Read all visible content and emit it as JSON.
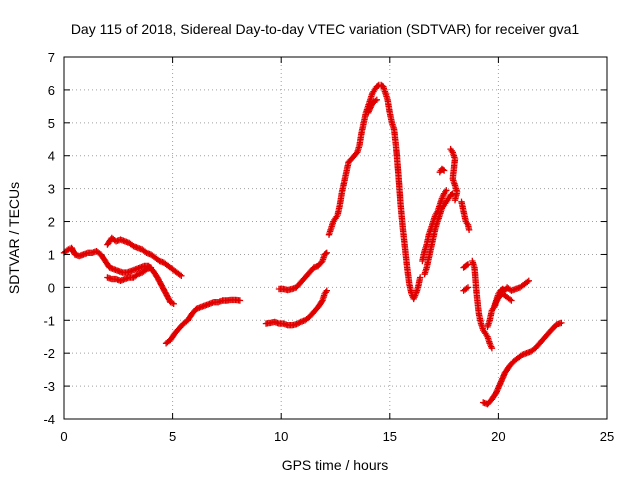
{
  "chart_data": {
    "type": "scatter",
    "title": "Day 115 of 2018, Sidereal Day-to-day VTEC variation (SDTVAR) for receiver gva1",
    "xlabel": "GPS time / hours",
    "ylabel": "SDTVAR / TECUs",
    "xlim": [
      0,
      25
    ],
    "ylim": [
      -4,
      7
    ],
    "xticks": [
      "0",
      "5",
      "10",
      "15",
      "20",
      "25"
    ],
    "yticks": [
      "-4",
      "-3",
      "-2",
      "-1",
      "0",
      "1",
      "2",
      "3",
      "4",
      "5",
      "6",
      "7"
    ],
    "grid": true,
    "marker": "+",
    "color": "#e00000",
    "series": [
      {
        "name": "seg1",
        "points": [
          [
            0.0,
            1.05
          ],
          [
            0.2,
            1.15
          ],
          [
            0.35,
            1.2
          ],
          [
            0.5,
            1.0
          ],
          [
            0.7,
            0.95
          ],
          [
            0.9,
            1.0
          ],
          [
            1.1,
            1.05
          ],
          [
            1.3,
            1.05
          ],
          [
            1.5,
            1.1
          ],
          [
            1.7,
            1.0
          ],
          [
            1.9,
            0.8
          ],
          [
            2.1,
            0.6
          ],
          [
            2.3,
            0.55
          ],
          [
            2.5,
            0.5
          ],
          [
            2.7,
            0.45
          ],
          [
            2.9,
            0.45
          ],
          [
            3.1,
            0.5
          ],
          [
            3.3,
            0.55
          ],
          [
            3.5,
            0.6
          ],
          [
            3.7,
            0.65
          ],
          [
            3.9,
            0.65
          ],
          [
            4.1,
            0.5
          ],
          [
            4.3,
            0.3
          ],
          [
            4.5,
            0.05
          ],
          [
            4.7,
            -0.2
          ],
          [
            4.9,
            -0.45
          ],
          [
            5.05,
            -0.5
          ]
        ]
      },
      {
        "name": "seg2",
        "points": [
          [
            2.0,
            1.3
          ],
          [
            2.2,
            1.5
          ],
          [
            2.4,
            1.4
          ],
          [
            2.6,
            1.45
          ],
          [
            2.8,
            1.4
          ],
          [
            3.0,
            1.35
          ],
          [
            3.2,
            1.25
          ],
          [
            3.4,
            1.2
          ],
          [
            3.6,
            1.15
          ],
          [
            3.8,
            1.05
          ],
          [
            4.0,
            1.0
          ],
          [
            4.2,
            0.9
          ],
          [
            4.4,
            0.8
          ],
          [
            4.6,
            0.75
          ],
          [
            4.8,
            0.65
          ],
          [
            5.0,
            0.55
          ],
          [
            5.2,
            0.45
          ],
          [
            5.4,
            0.35
          ]
        ]
      },
      {
        "name": "seg3",
        "points": [
          [
            2.0,
            0.3
          ],
          [
            2.2,
            0.25
          ],
          [
            2.4,
            0.25
          ],
          [
            2.6,
            0.2
          ],
          [
            2.8,
            0.25
          ],
          [
            3.0,
            0.3
          ],
          [
            3.2,
            0.3
          ],
          [
            3.4,
            0.4
          ],
          [
            3.6,
            0.45
          ],
          [
            3.8,
            0.55
          ],
          [
            4.0,
            0.6
          ]
        ]
      },
      {
        "name": "seg4",
        "points": [
          [
            4.7,
            -1.7
          ],
          [
            4.9,
            -1.6
          ],
          [
            5.1,
            -1.4
          ],
          [
            5.3,
            -1.25
          ],
          [
            5.5,
            -1.1
          ],
          [
            5.7,
            -1.0
          ],
          [
            5.9,
            -0.8
          ],
          [
            6.1,
            -0.65
          ],
          [
            6.3,
            -0.6
          ],
          [
            6.5,
            -0.55
          ],
          [
            6.7,
            -0.5
          ],
          [
            6.9,
            -0.45
          ],
          [
            7.1,
            -0.45
          ],
          [
            7.3,
            -0.4
          ],
          [
            7.5,
            -0.4
          ],
          [
            7.7,
            -0.38
          ],
          [
            7.9,
            -0.38
          ],
          [
            8.1,
            -0.4
          ]
        ]
      },
      {
        "name": "seg5",
        "points": [
          [
            9.3,
            -1.1
          ],
          [
            9.5,
            -1.08
          ],
          [
            9.7,
            -1.05
          ],
          [
            9.9,
            -1.1
          ],
          [
            10.1,
            -1.1
          ],
          [
            10.3,
            -1.15
          ],
          [
            10.5,
            -1.15
          ],
          [
            10.7,
            -1.12
          ],
          [
            10.9,
            -1.05
          ],
          [
            11.1,
            -1.0
          ],
          [
            11.3,
            -0.9
          ],
          [
            11.5,
            -0.75
          ],
          [
            11.7,
            -0.6
          ],
          [
            11.9,
            -0.4
          ],
          [
            12.0,
            -0.2
          ],
          [
            12.1,
            -0.1
          ]
        ]
      },
      {
        "name": "seg6",
        "points": [
          [
            9.9,
            -0.05
          ],
          [
            10.1,
            -0.05
          ],
          [
            10.3,
            -0.08
          ],
          [
            10.5,
            -0.05
          ],
          [
            10.7,
            0.0
          ],
          [
            10.9,
            0.15
          ],
          [
            11.1,
            0.3
          ],
          [
            11.3,
            0.45
          ],
          [
            11.5,
            0.6
          ],
          [
            11.7,
            0.65
          ],
          [
            11.9,
            0.8
          ],
          [
            12.0,
            1.0
          ],
          [
            12.1,
            1.05
          ]
        ]
      },
      {
        "name": "seg7",
        "points": [
          [
            12.2,
            1.6
          ],
          [
            12.3,
            1.8
          ],
          [
            12.4,
            2.0
          ],
          [
            12.5,
            2.1
          ],
          [
            12.6,
            2.2
          ],
          [
            12.7,
            2.5
          ],
          [
            12.8,
            2.9
          ],
          [
            12.9,
            3.2
          ],
          [
            13.0,
            3.5
          ],
          [
            13.1,
            3.8
          ],
          [
            13.3,
            3.95
          ],
          [
            13.5,
            4.1
          ],
          [
            13.6,
            4.3
          ],
          [
            13.7,
            4.7
          ],
          [
            13.8,
            5.0
          ],
          [
            13.9,
            5.3
          ],
          [
            14.0,
            5.5
          ],
          [
            14.1,
            5.7
          ],
          [
            14.2,
            5.9
          ],
          [
            14.3,
            6.0
          ],
          [
            14.4,
            6.1
          ],
          [
            14.5,
            6.15
          ],
          [
            14.6,
            6.15
          ],
          [
            14.7,
            6.1
          ],
          [
            14.8,
            5.9
          ],
          [
            14.9,
            5.7
          ],
          [
            15.0,
            5.3
          ],
          [
            15.1,
            5.0
          ],
          [
            15.2,
            4.8
          ],
          [
            15.3,
            4.2
          ],
          [
            15.4,
            3.4
          ],
          [
            15.5,
            2.5
          ],
          [
            15.6,
            1.8
          ],
          [
            15.7,
            1.2
          ],
          [
            15.8,
            0.6
          ],
          [
            15.9,
            0.1
          ],
          [
            16.0,
            -0.2
          ],
          [
            16.1,
            -0.35
          ],
          [
            16.2,
            -0.2
          ],
          [
            16.3,
            0.0
          ],
          [
            16.4,
            0.3
          ]
        ]
      },
      {
        "name": "seg8",
        "points": [
          [
            14.0,
            5.3
          ],
          [
            14.2,
            5.6
          ],
          [
            14.4,
            5.7
          ]
        ]
      },
      {
        "name": "seg9",
        "points": [
          [
            16.5,
            0.8
          ],
          [
            16.6,
            1.1
          ],
          [
            16.7,
            1.3
          ],
          [
            16.8,
            1.6
          ],
          [
            16.9,
            1.8
          ],
          [
            17.0,
            2.0
          ],
          [
            17.1,
            2.2
          ],
          [
            17.2,
            2.3
          ],
          [
            17.3,
            2.5
          ],
          [
            17.4,
            2.7
          ],
          [
            17.5,
            2.85
          ],
          [
            17.6,
            2.95
          ]
        ]
      },
      {
        "name": "seg10",
        "points": [
          [
            16.6,
            0.4
          ],
          [
            16.7,
            0.6
          ],
          [
            16.8,
            0.9
          ],
          [
            16.9,
            1.2
          ],
          [
            17.0,
            1.5
          ],
          [
            17.1,
            1.8
          ],
          [
            17.2,
            2.0
          ],
          [
            17.3,
            2.2
          ],
          [
            17.4,
            2.4
          ],
          [
            17.5,
            2.5
          ],
          [
            17.6,
            2.6
          ],
          [
            17.7,
            2.7
          ],
          [
            17.8,
            2.8
          ],
          [
            17.9,
            2.85
          ]
        ]
      },
      {
        "name": "seg11",
        "points": [
          [
            17.3,
            3.5
          ],
          [
            17.4,
            3.6
          ],
          [
            17.5,
            3.55
          ]
        ]
      },
      {
        "name": "seg12",
        "points": [
          [
            17.8,
            4.2
          ],
          [
            17.9,
            4.1
          ],
          [
            18.0,
            3.9
          ],
          [
            17.9,
            3.3
          ],
          [
            18.0,
            3.1
          ],
          [
            18.1,
            2.9
          ],
          [
            18.0,
            2.65
          ]
        ]
      },
      {
        "name": "seg13",
        "points": [
          [
            18.3,
            2.6
          ],
          [
            18.4,
            2.3
          ],
          [
            18.5,
            2.0
          ],
          [
            18.6,
            1.9
          ],
          [
            18.65,
            1.75
          ]
        ]
      },
      {
        "name": "seg14",
        "points": [
          [
            18.4,
            0.6
          ],
          [
            18.5,
            0.65
          ],
          [
            18.6,
            0.7
          ]
        ]
      },
      {
        "name": "seg15",
        "points": [
          [
            18.4,
            -0.1
          ],
          [
            18.6,
            0.0
          ]
        ]
      },
      {
        "name": "seg16",
        "points": [
          [
            18.8,
            0.8
          ],
          [
            18.9,
            0.6
          ],
          [
            18.95,
            0.2
          ],
          [
            19.0,
            -0.2
          ],
          [
            19.05,
            -0.5
          ],
          [
            19.1,
            -0.8
          ],
          [
            19.2,
            -1.1
          ],
          [
            19.3,
            -1.3
          ],
          [
            19.4,
            -1.4
          ],
          [
            19.5,
            -1.5
          ],
          [
            19.6,
            -1.7
          ],
          [
            19.7,
            -1.85
          ]
        ]
      },
      {
        "name": "seg17",
        "points": [
          [
            19.8,
            -0.6
          ],
          [
            19.9,
            -0.4
          ],
          [
            20.0,
            -0.2
          ],
          [
            20.1,
            -0.1
          ],
          [
            20.2,
            -0.05
          ],
          [
            20.3,
            -0.1
          ],
          [
            20.4,
            0.0
          ],
          [
            20.6,
            -0.1
          ],
          [
            20.8,
            -0.05
          ],
          [
            21.0,
            0.0
          ],
          [
            21.2,
            0.1
          ],
          [
            21.4,
            0.2
          ]
        ]
      },
      {
        "name": "seg18",
        "points": [
          [
            19.5,
            -1.2
          ],
          [
            19.6,
            -1.0
          ],
          [
            19.7,
            -0.7
          ],
          [
            19.8,
            -0.6
          ],
          [
            20.0,
            -0.3
          ],
          [
            20.2,
            -0.2
          ],
          [
            20.4,
            -0.3
          ],
          [
            20.6,
            -0.4
          ]
        ]
      },
      {
        "name": "seg19",
        "points": [
          [
            19.3,
            -3.5
          ],
          [
            19.5,
            -3.55
          ],
          [
            19.7,
            -3.4
          ],
          [
            19.9,
            -3.2
          ],
          [
            20.1,
            -2.9
          ],
          [
            20.3,
            -2.6
          ],
          [
            20.5,
            -2.4
          ],
          [
            20.7,
            -2.25
          ],
          [
            20.9,
            -2.15
          ],
          [
            21.1,
            -2.05
          ],
          [
            21.3,
            -2.0
          ],
          [
            21.5,
            -1.95
          ],
          [
            21.7,
            -1.85
          ],
          [
            21.9,
            -1.7
          ],
          [
            22.1,
            -1.55
          ],
          [
            22.3,
            -1.4
          ],
          [
            22.5,
            -1.25
          ],
          [
            22.7,
            -1.12
          ],
          [
            22.9,
            -1.08
          ]
        ]
      }
    ]
  }
}
